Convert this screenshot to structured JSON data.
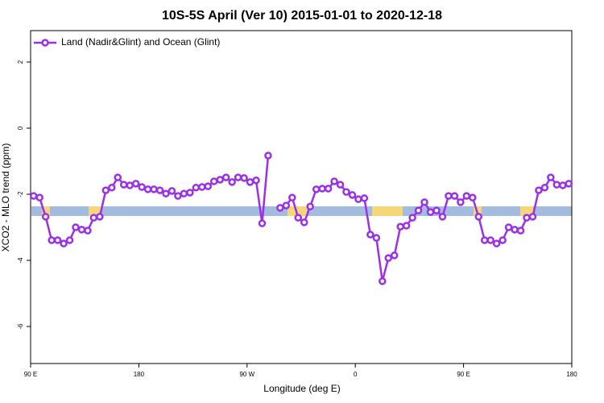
{
  "chart_data": {
    "type": "line",
    "title": "10S-5S April (Ver 10)   2015-01-01 to 2020-12-18",
    "x_label": "Longitude (deg E)",
    "y_label": "XCO2 - MLO trend (ppm)",
    "legend_position": "top-left",
    "x": [
      92.5,
      97.5,
      102.5,
      107.5,
      112.5,
      117.5,
      122.5,
      127.5,
      132.5,
      137.5,
      142.5,
      147.5,
      152.5,
      157.5,
      162.5,
      167.5,
      172.5,
      177.5,
      182.5,
      187.5,
      192.5,
      197.5,
      202.5,
      207.5,
      212.5,
      217.5,
      222.5,
      227.5,
      232.5,
      237.5,
      242.5,
      247.5,
      252.5,
      257.5,
      262.5,
      267.5,
      272.5,
      277.5,
      282.5,
      287.5,
      292.5,
      297.5,
      302.5,
      307.5,
      312.5,
      317.5,
      322.5,
      327.5,
      332.5,
      337.5,
      342.5,
      347.5,
      352.5,
      357.5,
      362.5,
      367.5,
      372.5,
      377.5,
      382.5,
      387.5,
      392.5,
      397.5,
      402.5,
      407.5,
      412.5,
      417.5,
      422.5,
      427.5,
      432.5,
      437.5,
      442.5,
      447.5,
      452.5,
      457.5,
      462.5,
      467.5,
      472.5,
      477.5,
      482.5,
      487.5,
      492.5,
      497.5,
      502.5,
      507.5,
      512.5,
      517.5,
      522.5,
      527.5,
      532.5,
      537.5
    ],
    "series": [
      {
        "name": "Land (Nadir&Glint) and Ocean (Glint)",
        "color": "#9b30e8",
        "values": [
          -2.05,
          -2.1,
          -2.68,
          -3.39,
          -3.39,
          -3.49,
          -3.39,
          -3.0,
          -3.07,
          -3.1,
          -2.71,
          -2.68,
          -1.88,
          -1.8,
          -1.49,
          -1.71,
          -1.73,
          -1.68,
          -1.78,
          -1.85,
          -1.85,
          -1.88,
          -1.98,
          -1.9,
          -2.05,
          -1.98,
          -1.95,
          -1.8,
          -1.78,
          -1.76,
          -1.61,
          -1.56,
          -1.49,
          -1.63,
          -1.49,
          -1.51,
          -1.63,
          -1.58,
          -2.88,
          -0.83,
          null,
          -2.41,
          -2.34,
          -2.1,
          -2.71,
          -2.85,
          -2.37,
          -1.85,
          -1.83,
          -1.83,
          -1.61,
          -1.71,
          -1.93,
          -2.02,
          -2.15,
          -2.12,
          -3.22,
          -3.32,
          -4.63,
          -3.93,
          -3.85,
          -2.98,
          -2.95,
          -2.71,
          -2.49,
          -2.24,
          -2.54,
          -2.49,
          -2.68,
          -2.05,
          -2.05,
          -2.24,
          -2.05,
          -2.1,
          -2.68,
          -3.39,
          -3.39,
          -3.49,
          -3.39,
          -3.0,
          -3.07,
          -3.1,
          -2.71,
          -2.68,
          -1.88,
          -1.8,
          -1.49,
          -1.71,
          -1.73,
          -1.68
        ]
      }
    ],
    "xlim": [
      90,
      540
    ],
    "xticks": [
      {
        "value": 90,
        "label": "90 E"
      },
      180,
      {
        "value": 270,
        "label": "90 W"
      },
      {
        "value": 360,
        "label": "0"
      },
      {
        "value": 450,
        "label": "90 E"
      },
      {
        "value": 540,
        "label": "180"
      }
    ],
    "ylim": [
      -7.12,
      2.95
    ],
    "yticks": [
      -6,
      -4,
      -2,
      0,
      2
    ]
  }
}
